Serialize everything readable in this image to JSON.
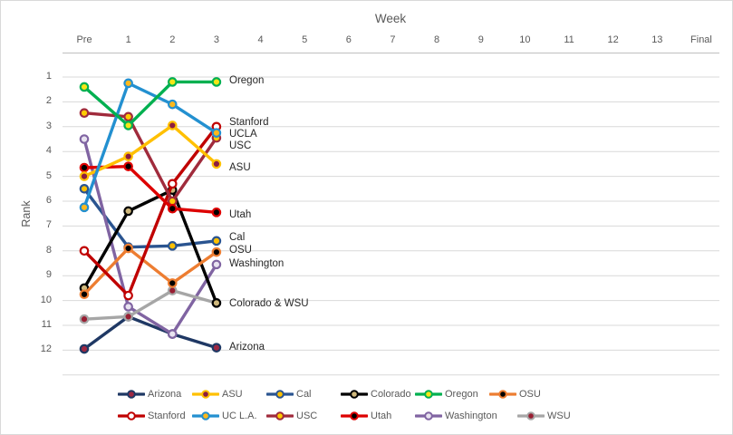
{
  "window": {
    "background": "#FFFFFF",
    "border_color": "#D9D9D9"
  },
  "chart_data": {
    "type": "line",
    "title": "Week",
    "xlabel": "Week",
    "ylabel": "Rank",
    "x_categories": [
      "Pre",
      "1",
      "2",
      "3",
      "4",
      "5",
      "6",
      "7",
      "8",
      "9",
      "10",
      "11",
      "12",
      "13",
      "Final"
    ],
    "y_ticks": [
      1,
      2,
      3,
      4,
      5,
      6,
      7,
      8,
      9,
      10,
      11,
      12
    ],
    "y_axis": {
      "min": 1,
      "max": 12,
      "orientation": "rank 1 at top, values increase downward"
    },
    "weeks_with_data": [
      "Pre",
      "1",
      "2",
      "3"
    ],
    "grid_on": true,
    "grid_color": "#D9D9D9",
    "axis_color": "#BFBFBF",
    "tick_color": "#595959",
    "label_color": "#262626",
    "series": [
      {
        "name": "Cal",
        "line": "#2A5490",
        "fill": "#FFC000",
        "values": [
          5.5,
          7.85,
          7.8,
          7.6
        ]
      },
      {
        "name": "Arizona",
        "line": "#1F3864",
        "fill": "#9E2842",
        "values": [
          11.95,
          10.65,
          11.35,
          11.9
        ]
      },
      {
        "name": "Washington",
        "line": "#8064A2",
        "fill": "#E8E3F0",
        "values": [
          3.5,
          10.25,
          11.35,
          8.55
        ]
      },
      {
        "name": "WSU",
        "line": "#A6A6A6",
        "fill": "#981E32",
        "values": [
          10.75,
          10.65,
          9.6,
          10.1
        ]
      },
      {
        "name": "Colorado",
        "line": "#000000",
        "fill": "#CFB87C",
        "values": [
          9.5,
          6.4,
          5.55,
          10.1
        ]
      },
      {
        "name": "OSU",
        "line": "#ED7D31",
        "fill": "#000000",
        "values": [
          9.75,
          7.9,
          9.3,
          8.05
        ]
      },
      {
        "name": "Stanford",
        "line": "#C00000",
        "fill": "#FFFFFF",
        "values": [
          8.0,
          9.8,
          5.3,
          3.0
        ]
      },
      {
        "name": "USC",
        "line": "#A02B3C",
        "fill": "#FFCC00",
        "values": [
          2.45,
          2.6,
          6.0,
          3.45
        ]
      },
      {
        "name": "Utah",
        "line": "#DD0000",
        "fill": "#000000",
        "values": [
          4.65,
          4.6,
          6.3,
          6.45
        ]
      },
      {
        "name": "ASU",
        "line": "#FFC000",
        "fill": "#8C1D40",
        "values": [
          5.0,
          4.2,
          2.95,
          4.5
        ]
      },
      {
        "name": "UC L.A.",
        "line": "#2390D0",
        "fill": "#FFB81C",
        "values": [
          6.25,
          1.25,
          2.1,
          3.25
        ]
      },
      {
        "name": "Oregon",
        "line": "#00B050",
        "fill": "#F5E616",
        "values": [
          1.4,
          2.95,
          1.2,
          1.2
        ]
      }
    ],
    "end_labels": [
      {
        "text": "Oregon",
        "rank": 1.22
      },
      {
        "text": "Stanford",
        "rank": 2.9
      },
      {
        "text": "UCLA",
        "rank": 3.37
      },
      {
        "text": "USC",
        "rank": 3.85
      },
      {
        "text": "ASU",
        "rank": 4.72
      },
      {
        "text": "Utah",
        "rank": 6.62
      },
      {
        "text": "Cal",
        "rank": 7.53
      },
      {
        "text": "OSU",
        "rank": 8.05
      },
      {
        "text": "Washington",
        "rank": 8.6
      },
      {
        "text": "Colorado & WSU",
        "rank": 10.2
      },
      {
        "text": "Arizona",
        "rank": 11.95
      }
    ]
  },
  "legend": {
    "text_color": "#595959",
    "rows": [
      [
        "Arizona",
        "ASU",
        "Cal",
        "Colorado",
        "Oregon",
        "OSU"
      ],
      [
        "Stanford",
        "UC L.A.",
        "USC",
        "Utah",
        "Washington",
        "WSU"
      ]
    ]
  }
}
